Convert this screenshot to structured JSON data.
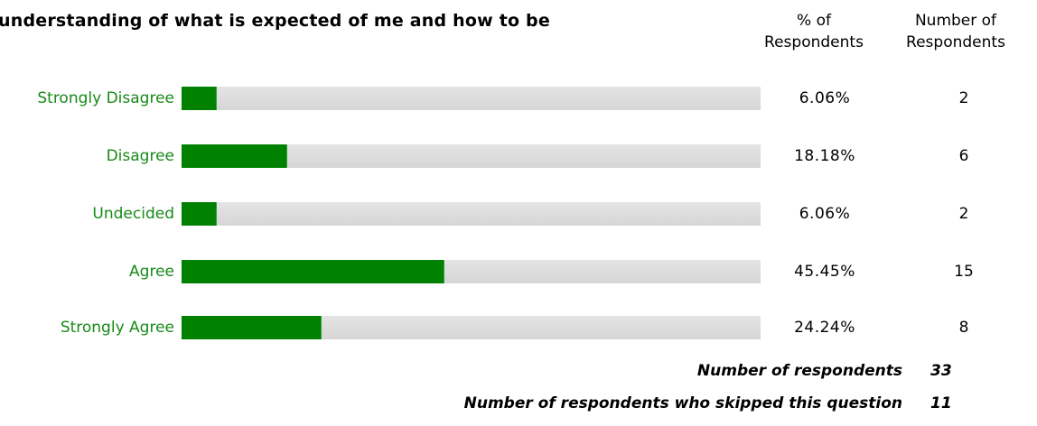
{
  "question": {
    "title": "understanding of what is expected of me and how to be"
  },
  "columns": {
    "percent_header_line1": "% of",
    "percent_header_line2": "Respondents",
    "count_header_line1": "Number of",
    "count_header_line2": "Respondents"
  },
  "colors": {
    "bar_fill": "#018101",
    "bar_track": "#dcdcdc",
    "label_text": "#178a17"
  },
  "chart_data": {
    "type": "bar",
    "orientation": "horizontal",
    "categories": [
      "Strongly Disagree",
      "Disagree",
      "Undecided",
      "Agree",
      "Strongly Agree"
    ],
    "series": [
      {
        "values": [
          6.06,
          18.18,
          6.06,
          45.45,
          24.24
        ]
      }
    ],
    "counts": [
      2,
      6,
      2,
      15,
      8
    ],
    "xlim": [
      0,
      100
    ],
    "rows": [
      {
        "label": "Strongly Disagree",
        "percent": 6.06,
        "percent_text": "6.06%",
        "count": "2"
      },
      {
        "label": "Disagree",
        "percent": 18.18,
        "percent_text": "18.18%",
        "count": "6"
      },
      {
        "label": "Undecided",
        "percent": 6.06,
        "percent_text": "6.06%",
        "count": "2"
      },
      {
        "label": "Agree",
        "percent": 45.45,
        "percent_text": "45.45%",
        "count": "15"
      },
      {
        "label": "Strongly Agree",
        "percent": 24.24,
        "percent_text": "24.24%",
        "count": "8"
      }
    ]
  },
  "summary": {
    "respondents_label": "Number of respondents",
    "respondents_value": "33",
    "skipped_label": "Number of respondents who skipped this question",
    "skipped_value": "11"
  }
}
